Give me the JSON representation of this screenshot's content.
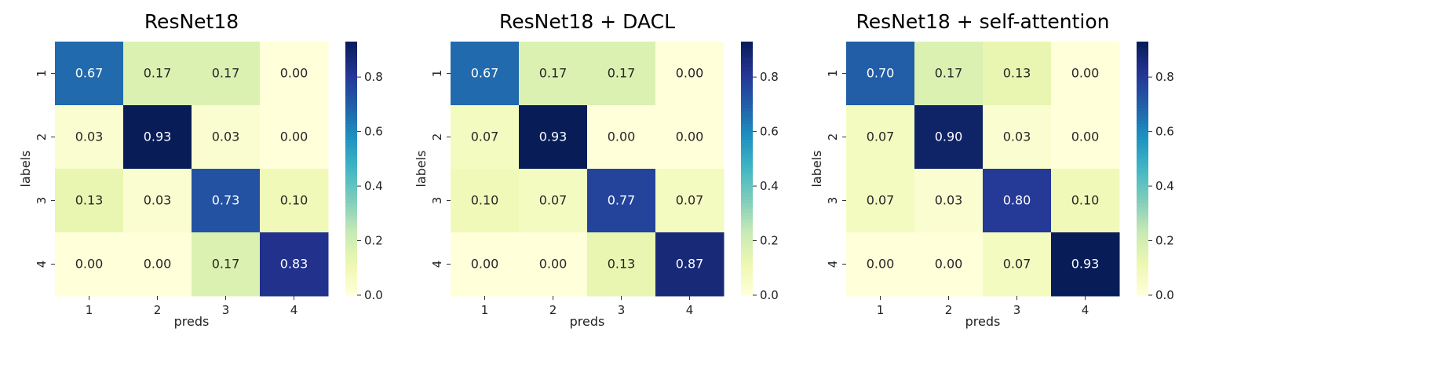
{
  "chart_data": [
    {
      "type": "heatmap",
      "title": "ResNet18",
      "xlabel": "preds",
      "ylabel": "labels",
      "x": [
        "1",
        "2",
        "3",
        "4"
      ],
      "y": [
        "1",
        "2",
        "3",
        "4"
      ],
      "values": [
        [
          0.67,
          0.17,
          0.17,
          0.0
        ],
        [
          0.03,
          0.93,
          0.03,
          0.0
        ],
        [
          0.13,
          0.03,
          0.73,
          0.1
        ],
        [
          0.0,
          0.0,
          0.17,
          0.83
        ]
      ],
      "colorbar": {
        "min": 0.0,
        "max": 0.93,
        "ticks": [
          "0.0",
          "0.2",
          "0.4",
          "0.6",
          "0.8"
        ],
        "colormap": "YlGnBu"
      }
    },
    {
      "type": "heatmap",
      "title": "ResNet18 + DACL",
      "xlabel": "preds",
      "ylabel": "labels",
      "x": [
        "1",
        "2",
        "3",
        "4"
      ],
      "y": [
        "1",
        "2",
        "3",
        "4"
      ],
      "values": [
        [
          0.67,
          0.17,
          0.17,
          0.0
        ],
        [
          0.07,
          0.93,
          0.0,
          0.0
        ],
        [
          0.1,
          0.07,
          0.77,
          0.07
        ],
        [
          0.0,
          0.0,
          0.13,
          0.87
        ]
      ],
      "colorbar": {
        "min": 0.0,
        "max": 0.93,
        "ticks": [
          "0.0",
          "0.2",
          "0.4",
          "0.6",
          "0.8"
        ],
        "colormap": "YlGnBu"
      }
    },
    {
      "type": "heatmap",
      "title": "ResNet18 + self-attention",
      "xlabel": "preds",
      "ylabel": "labels",
      "x": [
        "1",
        "2",
        "3",
        "4"
      ],
      "y": [
        "1",
        "2",
        "3",
        "4"
      ],
      "values": [
        [
          0.7,
          0.17,
          0.13,
          0.0
        ],
        [
          0.07,
          0.9,
          0.03,
          0.0
        ],
        [
          0.07,
          0.03,
          0.8,
          0.1
        ],
        [
          0.0,
          0.0,
          0.07,
          0.93
        ]
      ],
      "colorbar": {
        "min": 0.0,
        "max": 0.93,
        "ticks": [
          "0.0",
          "0.2",
          "0.4",
          "0.6",
          "0.8"
        ],
        "colormap": "YlGnBu"
      }
    }
  ]
}
